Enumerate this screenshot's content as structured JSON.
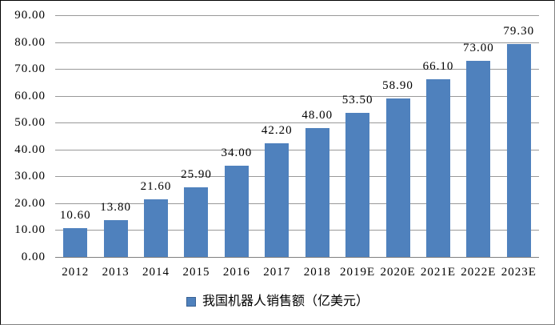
{
  "chart_data": {
    "type": "bar",
    "title": "",
    "xlabel": "",
    "ylabel": "",
    "categories": [
      "2012",
      "2013",
      "2014",
      "2015",
      "2016",
      "2017",
      "2018",
      "2019E",
      "2020E",
      "2021E",
      "2022E",
      "2023E"
    ],
    "values": [
      10.6,
      13.8,
      21.6,
      25.9,
      34.0,
      42.2,
      48.0,
      53.5,
      58.9,
      66.1,
      73.0,
      79.3
    ],
    "value_labels": [
      "10.60",
      "13.80",
      "21.60",
      "25.90",
      "34.00",
      "42.20",
      "48.00",
      "53.50",
      "58.90",
      "66.10",
      "73.00",
      "79.30"
    ],
    "ylim": [
      0,
      90
    ],
    "ytick_step": 10,
    "ytick_labels": [
      "0.00",
      "10.00",
      "20.00",
      "30.00",
      "40.00",
      "50.00",
      "60.00",
      "70.00",
      "80.00",
      "90.00"
    ],
    "grid": true,
    "legend": "我国机器人销售额（亿美元）",
    "legend_position": "bottom",
    "colors": {
      "bar": "#4F81BD",
      "gridline": "#999999",
      "axis_line": "#808080",
      "text": "#000000",
      "background": "#FFFFFF",
      "legend_swatch_border": "#3A6293"
    }
  }
}
